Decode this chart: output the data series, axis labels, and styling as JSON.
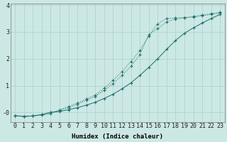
{
  "xlabel": "Humidex (Indice chaleur)",
  "bg_color": "#cce8e4",
  "grid_color": "#aacfcc",
  "line_color": "#1a6b6b",
  "x_values": [
    0,
    1,
    2,
    3,
    4,
    5,
    6,
    7,
    8,
    9,
    10,
    11,
    12,
    13,
    14,
    15,
    16,
    17,
    18,
    19,
    20,
    21,
    22,
    23
  ],
  "line1_y": [
    -0.12,
    -0.15,
    -0.13,
    -0.1,
    -0.05,
    0.1,
    0.22,
    0.35,
    0.5,
    0.65,
    0.9,
    1.2,
    1.52,
    1.9,
    2.3,
    2.85,
    3.3,
    3.5,
    3.52,
    3.53,
    3.55,
    3.6,
    3.65,
    3.7
  ],
  "line2_y": [
    -0.12,
    -0.15,
    -0.13,
    -0.08,
    0.0,
    0.08,
    0.18,
    0.3,
    0.45,
    0.6,
    0.82,
    1.08,
    1.38,
    1.72,
    2.15,
    2.9,
    3.12,
    3.38,
    3.48,
    3.53,
    3.58,
    3.63,
    3.68,
    3.73
  ],
  "line3_y": [
    -0.12,
    -0.15,
    -0.13,
    -0.08,
    0.0,
    0.04,
    0.1,
    0.18,
    0.27,
    0.38,
    0.52,
    0.68,
    0.88,
    1.1,
    1.38,
    1.68,
    2.0,
    2.35,
    2.68,
    2.95,
    3.15,
    3.33,
    3.5,
    3.65
  ],
  "ylim": [
    -0.35,
    4.05
  ],
  "xlim": [
    -0.5,
    23.5
  ],
  "yticks": [
    0,
    1,
    2,
    3,
    4
  ],
  "ytick_labels": [
    "-0",
    "1",
    "2",
    "3",
    "4"
  ],
  "xlabel_fontsize": 6.5,
  "tick_fontsize": 6
}
